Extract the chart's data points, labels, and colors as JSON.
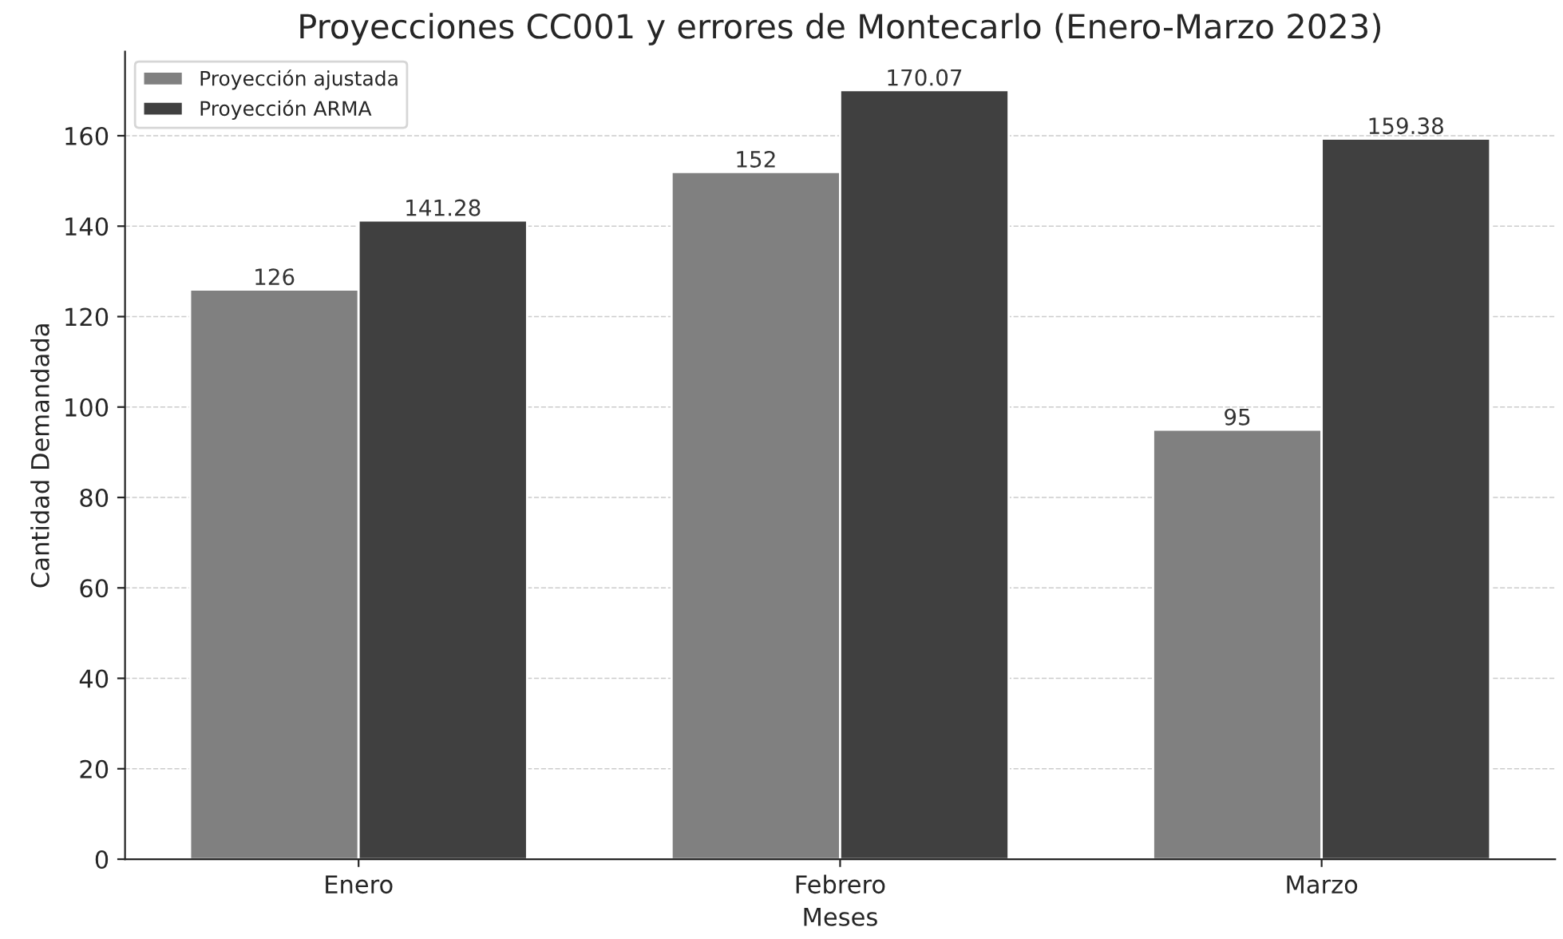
{
  "chart_data": {
    "type": "bar",
    "title": "Proyecciones CC001 y errores de Montecarlo (Enero-Marzo 2023)",
    "xlabel": "Meses",
    "ylabel": "Cantidad Demandada",
    "categories": [
      "Enero",
      "Febrero",
      "Marzo"
    ],
    "series": [
      {
        "name": "Proyección ajustada",
        "color": "#808080",
        "values": [
          126,
          152,
          95
        ]
      },
      {
        "name": "Proyección ARMA",
        "color": "#404040",
        "values": [
          141.28,
          170.07,
          159.38
        ]
      }
    ],
    "ylim": [
      0,
      178.6
    ],
    "yticks": [
      0,
      20,
      40,
      60,
      80,
      100,
      120,
      140,
      160
    ],
    "grid": "y",
    "legend": "top left",
    "data_labels": true
  }
}
